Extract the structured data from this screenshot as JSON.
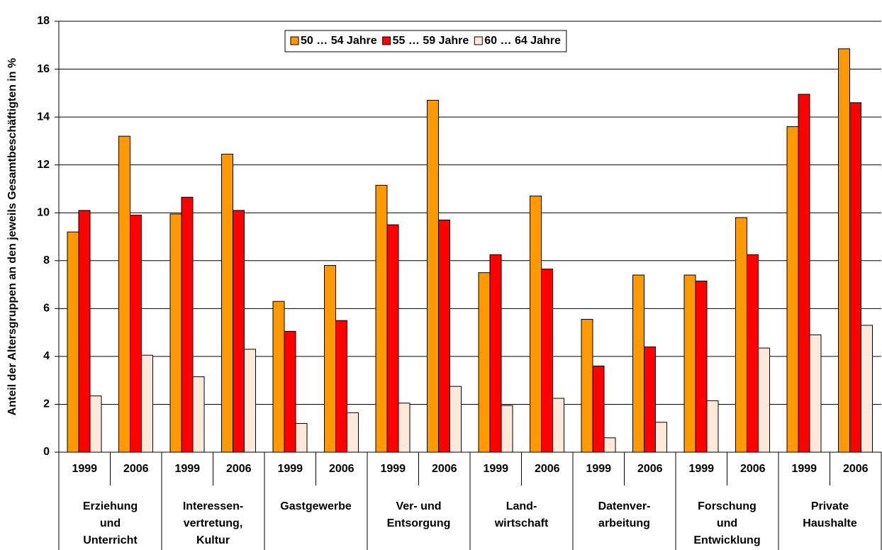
{
  "chart_data": {
    "type": "bar",
    "y_label": "Anteil der Altersgruppen an den jeweils Gesamtbeschäftigten in %",
    "categories": [
      "1999",
      "2006",
      "1999",
      "2006",
      "1999",
      "2006",
      "1999",
      "2006",
      "1999",
      "2006",
      "1999",
      "2006",
      "1999",
      "2006",
      "1999",
      "2006"
    ],
    "groups": [
      [
        "Erziehung",
        "und",
        "Unterricht"
      ],
      [
        "Interessen-",
        "vertretung,",
        "Kultur"
      ],
      [
        "Gastgewerbe"
      ],
      [
        "Ver- und",
        "Entsorgung"
      ],
      [
        "Land-",
        "wirtschaft"
      ],
      [
        "Datenver-",
        "arbeitung"
      ],
      [
        "Forschung",
        "und",
        "Entwicklung"
      ],
      [
        "Private",
        "Haushalte"
      ]
    ],
    "series": [
      {
        "name": "50 … 54 Jahre",
        "color": "#ff9900",
        "values": [
          9.2,
          13.2,
          9.95,
          12.45,
          6.3,
          7.8,
          11.15,
          14.7,
          7.5,
          10.7,
          5.55,
          7.4,
          7.4,
          9.8,
          13.6,
          16.85
        ]
      },
      {
        "name": "55 … 59 Jahre",
        "color": "#ff0000",
        "values": [
          10.1,
          9.9,
          10.65,
          10.1,
          5.05,
          5.5,
          9.5,
          9.7,
          8.25,
          7.65,
          3.6,
          4.4,
          7.15,
          8.25,
          14.95,
          14.6
        ]
      },
      {
        "name": "60 … 64 Jahre",
        "color": "#fde9d9",
        "values": [
          2.35,
          4.05,
          3.15,
          4.3,
          1.2,
          1.65,
          2.05,
          2.75,
          1.95,
          2.25,
          0.6,
          1.25,
          2.15,
          4.35,
          4.9,
          5.3
        ]
      }
    ],
    "ylim": [
      0,
      18
    ],
    "yticks": [
      0,
      2,
      4,
      6,
      8,
      10,
      12,
      14,
      16,
      18
    ],
    "grid": true
  }
}
